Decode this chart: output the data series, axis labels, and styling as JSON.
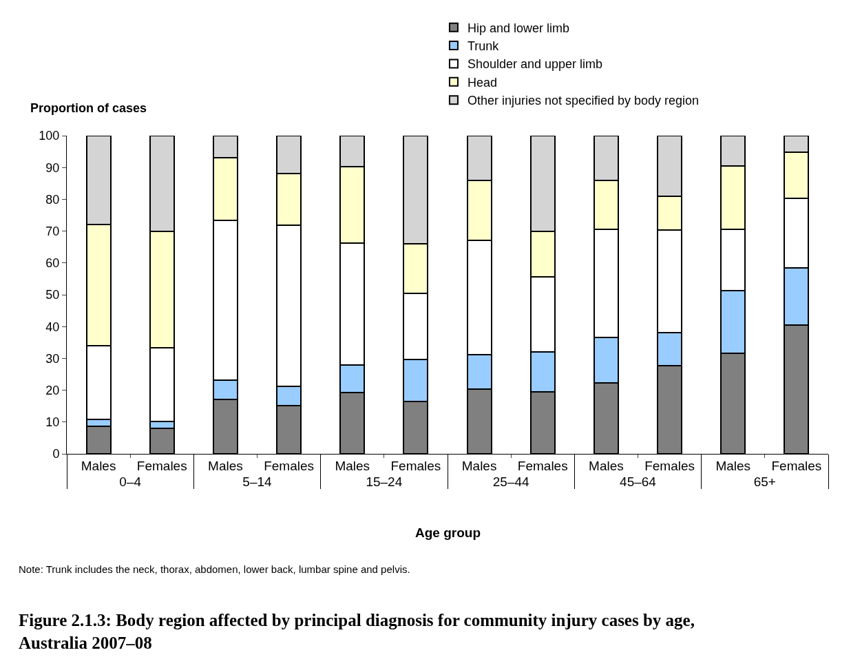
{
  "chart_data": {
    "type": "bar",
    "stacked": true,
    "title": "Figure 2.1.3: Body region affected by principal diagnosis for community injury cases by age,\nAustralia 2007–08",
    "xlabel": "Age group",
    "ylabel": "Proportion of cases",
    "categories": [
      "Males",
      "Females",
      "Males",
      "Females",
      "Males",
      "Females",
      "Males",
      "Females",
      "Males",
      "Females",
      "Males",
      "Females"
    ],
    "series": [
      {
        "name": "Hip and lower limb",
        "color": "#808080",
        "values": [
          8.7,
          8.0,
          17.0,
          15.2,
          19.3,
          16.5,
          20.3,
          19.5,
          22.3,
          27.6,
          31.7,
          40.5
        ]
      },
      {
        "name": "Trunk",
        "color": "#99ccff",
        "values": [
          2.1,
          2.2,
          6.1,
          6.0,
          8.6,
          13.2,
          10.8,
          12.5,
          14.3,
          10.6,
          19.6,
          17.9
        ]
      },
      {
        "name": "Shoulder and upper limb",
        "color": "#ffffff",
        "values": [
          23.2,
          23.1,
          50.3,
          50.6,
          38.3,
          20.8,
          36.0,
          23.7,
          34.0,
          32.1,
          19.3,
          21.8
        ]
      },
      {
        "name": "Head",
        "color": "#ffffcc",
        "values": [
          38.1,
          36.6,
          19.6,
          16.3,
          24.1,
          15.5,
          18.8,
          14.2,
          15.3,
          10.6,
          19.9,
          14.5
        ]
      },
      {
        "name": "Other injuries not specified by body region",
        "color": "#d4d4d4",
        "values": [
          27.9,
          30.1,
          7.0,
          11.9,
          9.7,
          34.0,
          14.1,
          30.1,
          14.1,
          19.1,
          9.5,
          5.3
        ]
      }
    ],
    "ylim": [
      0,
      100
    ],
    "yticks": [
      0,
      10,
      20,
      30,
      40,
      50,
      60,
      70,
      80,
      90,
      100
    ],
    "legend": "top",
    "annotations": [
      "0–4",
      "5–14",
      "15–24",
      "25–44",
      "45–64",
      "65+",
      "Note: Trunk includes the neck, thorax, abdomen, lower back, lumbar spine and pelvis."
    ]
  }
}
